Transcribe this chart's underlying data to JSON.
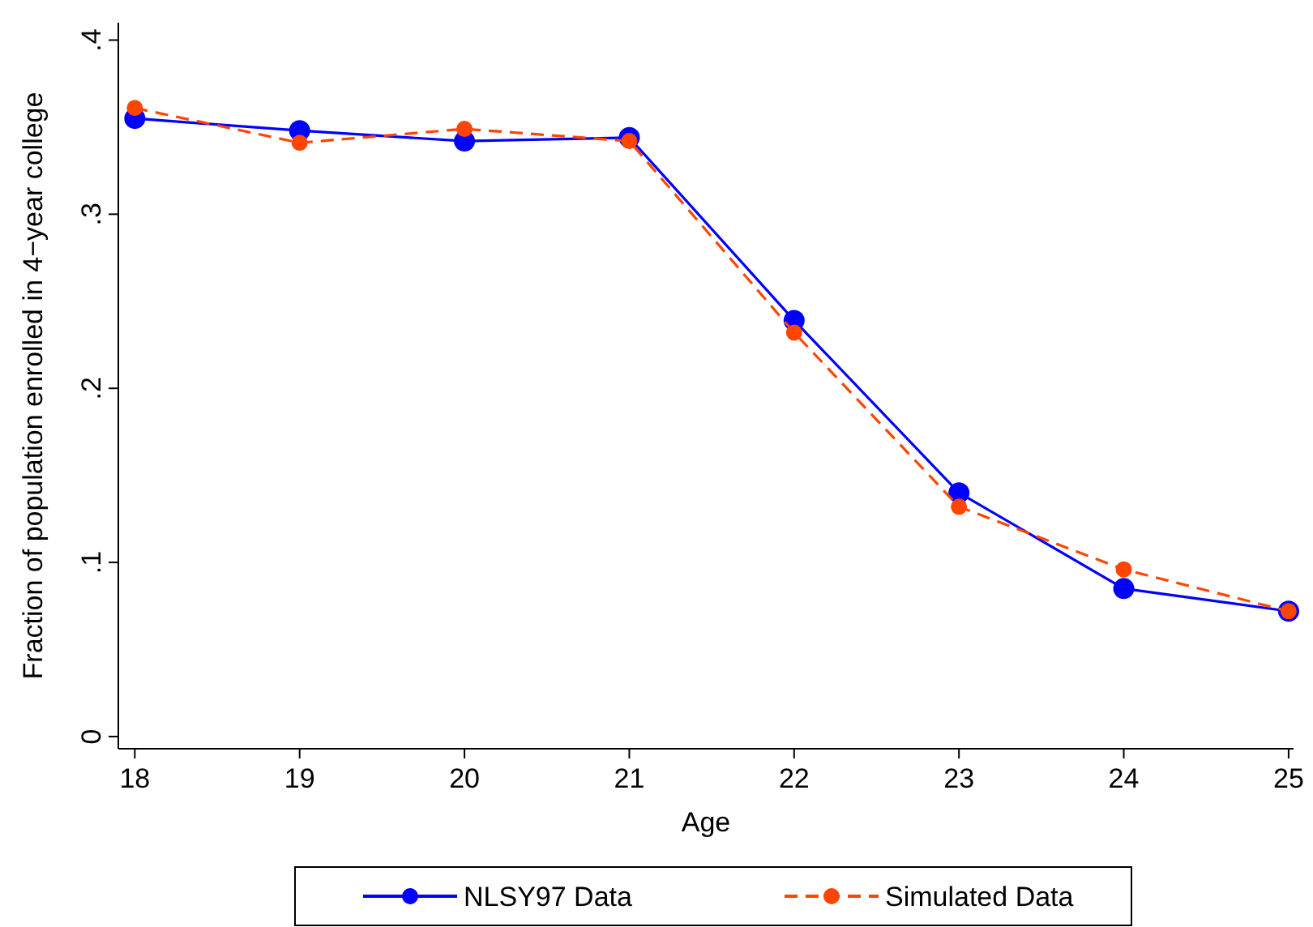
{
  "chart_data": {
    "type": "line",
    "xlabel": "Age",
    "ylabel": "Fraction of population enrolled in 4−year college",
    "x": [
      18,
      19,
      20,
      21,
      22,
      23,
      24,
      25
    ],
    "series": [
      {
        "name": "NLSY97 Data",
        "color": "#0000ff",
        "values": [
          0.355,
          0.348,
          0.342,
          0.344,
          0.239,
          0.14,
          0.085,
          0.072
        ],
        "line_style": "solid"
      },
      {
        "name": "Simulated Data",
        "color": "#ff4500",
        "values": [
          0.361,
          0.341,
          0.349,
          0.342,
          0.232,
          0.132,
          0.096,
          0.072
        ],
        "line_style": "dashed"
      }
    ],
    "xlim": [
      17.9,
      25.03
    ],
    "ylim": [
      -0.007,
      0.41
    ],
    "xticks": [
      18,
      19,
      20,
      21,
      22,
      23,
      24,
      25
    ],
    "yticks": [
      0,
      {
        "value": 0.1,
        "label": ".1"
      },
      {
        "value": 0.2,
        "label": ".2"
      },
      {
        "value": 0.3,
        "label": ".3"
      },
      {
        "value": 0.4,
        "label": ".4"
      }
    ],
    "marker": "circle",
    "grid": false,
    "legend": "bottom"
  }
}
